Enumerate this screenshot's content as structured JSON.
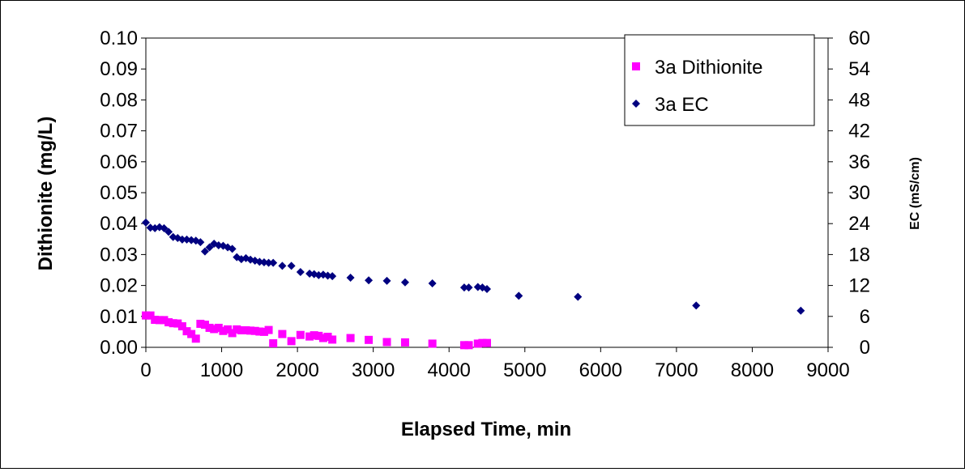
{
  "chart_data": {
    "type": "scatter",
    "xlabel": "Elapsed Time, min",
    "ylabel": "Dithionite (mg/L)",
    "y2label": "EC (mS/cm)",
    "xlim": [
      0,
      9000
    ],
    "ylim": [
      0,
      0.1
    ],
    "y2lim": [
      0,
      60
    ],
    "x_ticks": [
      "0",
      "1000",
      "2000",
      "3000",
      "4000",
      "5000",
      "6000",
      "7000",
      "8000",
      "9000"
    ],
    "y_ticks": [
      "0.00",
      "0.01",
      "0.02",
      "0.03",
      "0.04",
      "0.05",
      "0.06",
      "0.07",
      "0.08",
      "0.09",
      "0.10"
    ],
    "y2_ticks": [
      "0",
      "6",
      "12",
      "18",
      "24",
      "30",
      "36",
      "42",
      "48",
      "54",
      "60"
    ],
    "grid": false,
    "legend_position": "top-right",
    "series": [
      {
        "name": "3a Dithionite",
        "axis": "left",
        "marker": "square",
        "color": "#ff00ff",
        "x": [
          0,
          60,
          120,
          180,
          240,
          300,
          360,
          420,
          480,
          540,
          600,
          660,
          720,
          780,
          840,
          900,
          960,
          1020,
          1080,
          1140,
          1200,
          1260,
          1320,
          1380,
          1440,
          1500,
          1560,
          1620,
          1680,
          1800,
          1920,
          2040,
          2160,
          2220,
          2280,
          2340,
          2400,
          2460,
          2700,
          2940,
          3180,
          3420,
          3780,
          4200,
          4260,
          4380,
          4440,
          4500
        ],
        "y": [
          0.0103,
          0.0103,
          0.0089,
          0.0088,
          0.0088,
          0.0081,
          0.0078,
          0.0077,
          0.0068,
          0.0052,
          0.0043,
          0.0028,
          0.0076,
          0.0073,
          0.0063,
          0.0059,
          0.0063,
          0.0053,
          0.0058,
          0.0046,
          0.0058,
          0.0055,
          0.0055,
          0.0054,
          0.0053,
          0.0051,
          0.005,
          0.0056,
          0.0013,
          0.0043,
          0.002,
          0.004,
          0.0035,
          0.0039,
          0.0037,
          0.003,
          0.0034,
          0.0025,
          0.003,
          0.0024,
          0.0017,
          0.0016,
          0.0012,
          0.0007,
          0.0007,
          0.0012,
          0.0014,
          0.0014
        ]
      },
      {
        "name": "3a EC",
        "axis": "right",
        "marker": "diamond",
        "color": "#000080",
        "x": [
          0,
          60,
          120,
          180,
          240,
          300,
          360,
          420,
          480,
          540,
          600,
          660,
          720,
          780,
          840,
          900,
          960,
          1020,
          1080,
          1140,
          1200,
          1260,
          1320,
          1380,
          1440,
          1500,
          1560,
          1620,
          1680,
          1800,
          1920,
          2040,
          2160,
          2220,
          2280,
          2340,
          2400,
          2460,
          2700,
          2940,
          3180,
          3420,
          3780,
          4200,
          4260,
          4380,
          4440,
          4500,
          4920,
          5700,
          7260,
          8640
        ],
        "y": [
          24.2,
          23.2,
          23.1,
          23.3,
          23.1,
          22.4,
          21.4,
          21.2,
          20.9,
          20.9,
          20.8,
          20.7,
          20.4,
          18.6,
          19.4,
          20.1,
          19.8,
          19.7,
          19.4,
          19.1,
          17.5,
          17.1,
          17.3,
          17.0,
          16.8,
          16.6,
          16.5,
          16.4,
          16.4,
          15.8,
          15.8,
          14.6,
          14.3,
          14.2,
          14.0,
          14.1,
          13.9,
          13.8,
          13.5,
          13.0,
          12.9,
          12.6,
          12.4,
          11.6,
          11.6,
          11.7,
          11.6,
          11.3,
          10.0,
          9.8,
          8.1,
          7.1
        ]
      }
    ]
  }
}
